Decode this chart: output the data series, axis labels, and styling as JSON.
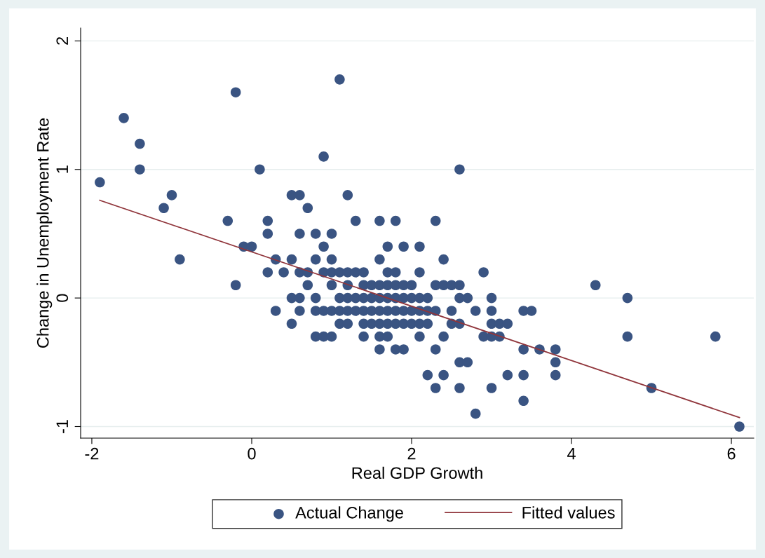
{
  "chart_data": {
    "type": "scatter",
    "xlabel": "Real GDP Growth",
    "ylabel": "Change in Unemployment Rate",
    "xlim": [
      -2.14,
      6.28
    ],
    "ylim": [
      -1.09,
      2.1
    ],
    "xticks": [
      -2,
      0,
      2,
      4,
      6
    ],
    "yticks": [
      -1,
      0,
      1,
      2
    ],
    "grid": "y",
    "legend": "bottom",
    "series": [
      {
        "name": "Actual Change",
        "marker": "circle",
        "color": "#3a5482",
        "x": [
          1.1,
          -0.2,
          -1.6,
          -1.4,
          0.9,
          -1.4,
          0.1,
          2.6,
          -1.9,
          -1.0,
          0.5,
          0.6,
          1.2,
          -1.1,
          0.7,
          -0.3,
          0.2,
          1.3,
          1.6,
          1.8,
          2.3,
          0.2,
          0.6,
          0.8,
          1.0,
          -0.1,
          0.0,
          0.9,
          1.7,
          1.9,
          2.1,
          -0.9,
          0.3,
          0.5,
          0.8,
          1.0,
          1.6,
          2.4,
          0.2,
          0.4,
          0.6,
          0.7,
          0.9,
          1.0,
          1.1,
          1.2,
          1.3,
          1.4,
          1.7,
          1.8,
          2.1,
          2.9,
          -0.2,
          0.7,
          1.0,
          1.2,
          1.4,
          1.5,
          1.6,
          1.7,
          1.8,
          1.9,
          2.0,
          2.3,
          2.4,
          2.5,
          2.6,
          4.3,
          0.5,
          0.6,
          0.8,
          1.1,
          1.2,
          1.3,
          1.4,
          1.5,
          1.6,
          1.7,
          1.8,
          1.9,
          2.0,
          2.1,
          2.2,
          2.6,
          2.7,
          3.0,
          4.7,
          0.3,
          0.6,
          0.8,
          0.9,
          1.0,
          1.1,
          1.2,
          1.3,
          1.4,
          1.5,
          1.6,
          1.7,
          1.8,
          1.9,
          2.0,
          2.1,
          2.2,
          2.3,
          2.5,
          2.8,
          3.0,
          3.4,
          3.5,
          0.5,
          1.1,
          1.2,
          1.4,
          1.5,
          1.6,
          1.7,
          1.8,
          1.9,
          2.0,
          2.1,
          2.2,
          2.5,
          2.6,
          3.0,
          3.1,
          3.2,
          0.8,
          0.9,
          1.0,
          1.4,
          1.6,
          1.7,
          2.1,
          2.4,
          2.9,
          3.0,
          3.1,
          4.7,
          5.8,
          1.6,
          1.8,
          1.9,
          2.3,
          3.4,
          3.6,
          3.8,
          2.6,
          2.7,
          3.8,
          2.2,
          2.4,
          3.2,
          3.4,
          3.8,
          2.3,
          2.6,
          3.0,
          5.0,
          3.4,
          2.8,
          6.1
        ],
        "values": [
          1.7,
          1.6,
          1.4,
          1.2,
          1.1,
          1.0,
          1.0,
          1.0,
          0.9,
          0.8,
          0.8,
          0.8,
          0.8,
          0.7,
          0.7,
          0.6,
          0.6,
          0.6,
          0.6,
          0.6,
          0.6,
          0.5,
          0.5,
          0.5,
          0.5,
          0.4,
          0.4,
          0.4,
          0.4,
          0.4,
          0.4,
          0.3,
          0.3,
          0.3,
          0.3,
          0.3,
          0.3,
          0.3,
          0.2,
          0.2,
          0.2,
          0.2,
          0.2,
          0.2,
          0.2,
          0.2,
          0.2,
          0.2,
          0.2,
          0.2,
          0.2,
          0.2,
          0.1,
          0.1,
          0.1,
          0.1,
          0.1,
          0.1,
          0.1,
          0.1,
          0.1,
          0.1,
          0.1,
          0.1,
          0.1,
          0.1,
          0.1,
          0.1,
          0.0,
          0.0,
          0.0,
          0.0,
          0.0,
          0.0,
          0.0,
          0.0,
          0.0,
          0.0,
          0.0,
          0.0,
          0.0,
          0.0,
          0.0,
          0.0,
          0.0,
          0.0,
          0.0,
          -0.1,
          -0.1,
          -0.1,
          -0.1,
          -0.1,
          -0.1,
          -0.1,
          -0.1,
          -0.1,
          -0.1,
          -0.1,
          -0.1,
          -0.1,
          -0.1,
          -0.1,
          -0.1,
          -0.1,
          -0.1,
          -0.1,
          -0.1,
          -0.1,
          -0.1,
          -0.1,
          -0.2,
          -0.2,
          -0.2,
          -0.2,
          -0.2,
          -0.2,
          -0.2,
          -0.2,
          -0.2,
          -0.2,
          -0.2,
          -0.2,
          -0.2,
          -0.2,
          -0.2,
          -0.2,
          -0.2,
          -0.3,
          -0.3,
          -0.3,
          -0.3,
          -0.3,
          -0.3,
          -0.3,
          -0.3,
          -0.3,
          -0.3,
          -0.3,
          -0.3,
          -0.3,
          -0.4,
          -0.4,
          -0.4,
          -0.4,
          -0.4,
          -0.4,
          -0.4,
          -0.5,
          -0.5,
          -0.5,
          -0.6,
          -0.6,
          -0.6,
          -0.6,
          -0.6,
          -0.7,
          -0.7,
          -0.7,
          -0.7,
          -0.8,
          -0.9,
          -1.0
        ]
      },
      {
        "name": "Fitted values",
        "type": "line",
        "color": "#90353b",
        "x": [
          -1.9,
          6.1
        ],
        "values": [
          0.76,
          -0.93
        ]
      }
    ]
  }
}
